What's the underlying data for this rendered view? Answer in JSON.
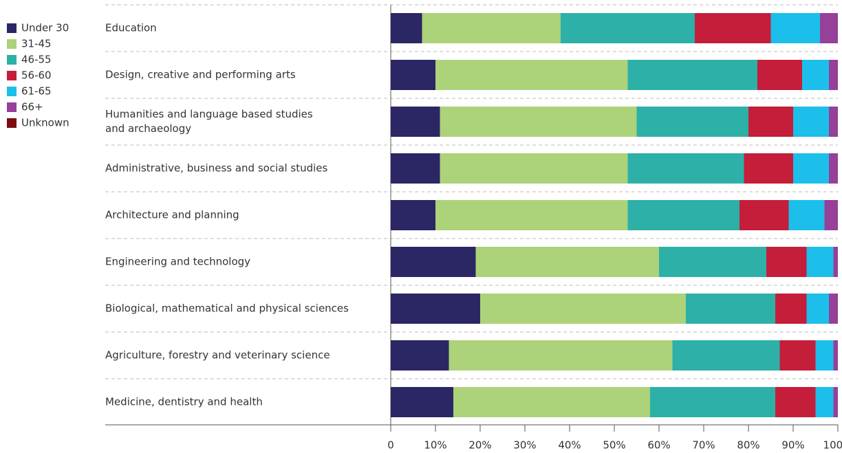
{
  "chart_data": {
    "type": "stacked_barh",
    "categories": [
      "Education",
      "Design, creative and performing arts",
      "Humanities and language based studies\nand archaeology",
      "Administrative, business and social studies",
      "Architecture and planning",
      "Engineering and technology",
      "Biological, mathematical and physical sciences",
      "Agriculture, forestry and veterinary science",
      "Medicine, dentistry and health"
    ],
    "series": [
      {
        "name": "Under 30",
        "color": "#2b2664",
        "values": [
          7,
          10,
          11,
          11,
          10,
          19,
          20,
          13,
          14
        ]
      },
      {
        "name": "31-45",
        "color": "#acd27a",
        "values": [
          31,
          43,
          44,
          42,
          43,
          41,
          46,
          50,
          44
        ]
      },
      {
        "name": "46-55",
        "color": "#2db0a8",
        "values": [
          30,
          29,
          25,
          26,
          25,
          24,
          20,
          24,
          28
        ]
      },
      {
        "name": "56-60",
        "color": "#c41e3a",
        "values": [
          17,
          10,
          10,
          11,
          11,
          9,
          7,
          8,
          9
        ]
      },
      {
        "name": "61-65",
        "color": "#1bbfea",
        "values": [
          11,
          6,
          8,
          8,
          8,
          6,
          5,
          4,
          4
        ]
      },
      {
        "name": "66+",
        "color": "#96409a",
        "values": [
          4,
          2,
          2,
          2,
          3,
          1,
          2,
          1,
          1
        ]
      },
      {
        "name": "Unknown",
        "color": "#7a0c12",
        "values": [
          0,
          0,
          0,
          0,
          0,
          0,
          0,
          0,
          0
        ]
      }
    ],
    "xlim": [
      0,
      100
    ],
    "xticks": [
      0,
      {
        "value": 10,
        "label": "10%"
      },
      {
        "value": 20,
        "label": "20%"
      },
      {
        "value": 30,
        "label": "30%"
      },
      {
        "value": 40,
        "label": "40%"
      },
      {
        "value": 50,
        "label": "50%"
      },
      {
        "value": 60,
        "label": "60%"
      },
      {
        "value": 70,
        "label": "70%"
      },
      {
        "value": 80,
        "label": "80%"
      },
      {
        "value": 90,
        "label": "90%"
      },
      {
        "value": 100,
        "label": "100%"
      }
    ],
    "legend": "top-left"
  }
}
